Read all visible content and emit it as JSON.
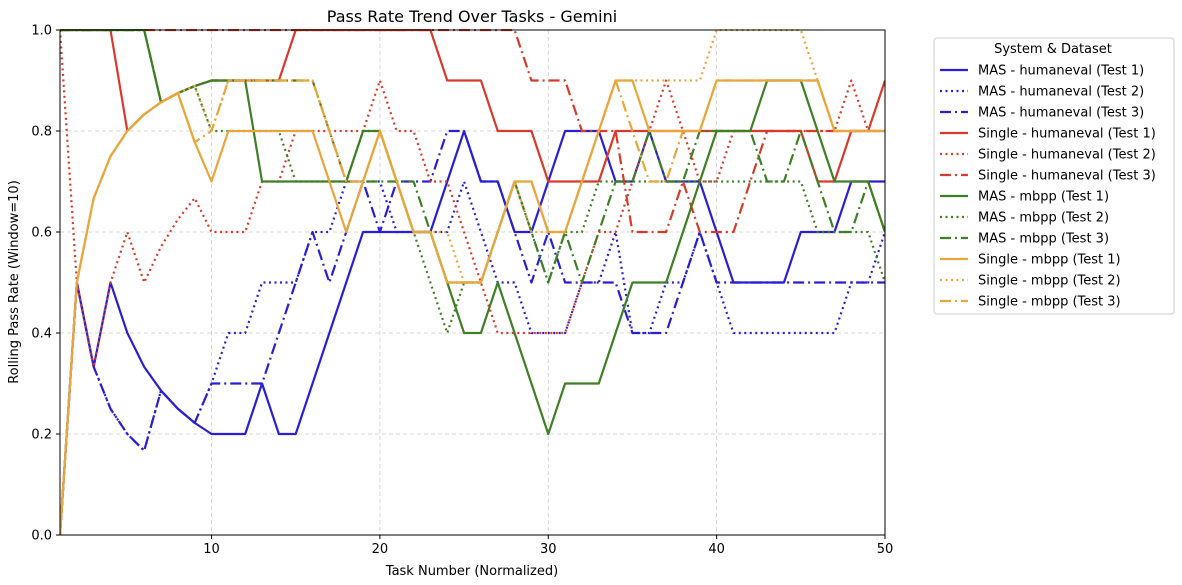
{
  "chart_data": {
    "type": "line",
    "title": "Pass Rate Trend Over Tasks - Gemini",
    "xlabel": "Task Number (Normalized)",
    "ylabel": "Rolling Pass Rate (Window=10)",
    "xlim": [
      1,
      50
    ],
    "ylim": [
      0.0,
      1.0
    ],
    "x_ticks": [
      10,
      20,
      30,
      40,
      50
    ],
    "y_ticks": [
      0.0,
      0.2,
      0.4,
      0.6,
      0.8,
      1.0
    ],
    "x_tick_labels": [
      "10",
      "20",
      "30",
      "40",
      "50"
    ],
    "y_tick_labels": [
      "0.0",
      "0.2",
      "0.4",
      "0.6",
      "0.8",
      "1.0"
    ],
    "grid": true,
    "legend": {
      "title": "System & Dataset",
      "placement": "outside-right"
    },
    "x": [
      1,
      2,
      3,
      4,
      5,
      6,
      7,
      8,
      9,
      10,
      11,
      12,
      13,
      14,
      15,
      16,
      17,
      18,
      19,
      20,
      21,
      22,
      23,
      24,
      25,
      26,
      27,
      28,
      29,
      30,
      31,
      32,
      33,
      34,
      35,
      36,
      37,
      38,
      39,
      40,
      41,
      42,
      43,
      44,
      45,
      46,
      47,
      48,
      49,
      50
    ],
    "series": [
      {
        "name": "MAS - humaneval (Test 1)",
        "color": "#2a1fd6",
        "dash": "solid",
        "values": [
          0,
          0.5,
          0.333,
          0.5,
          0.4,
          0.333,
          0.286,
          0.25,
          0.222,
          0.2,
          0.2,
          0.2,
          0.3,
          0.2,
          0.2,
          0.3,
          0.4,
          0.5,
          0.6,
          0.6,
          0.6,
          0.6,
          0.6,
          0.7,
          0.8,
          0.7,
          0.7,
          0.6,
          0.6,
          0.7,
          0.8,
          0.8,
          0.8,
          0.7,
          0.7,
          0.8,
          0.7,
          0.7,
          0.7,
          0.6,
          0.5,
          0.5,
          0.5,
          0.5,
          0.6,
          0.6,
          0.6,
          0.7,
          0.7,
          0.7
        ]
      },
      {
        "name": "MAS - humaneval (Test 2)",
        "color": "#2a1fd6",
        "dash": "dotted",
        "values": [
          0,
          0.5,
          0.333,
          0.25,
          0.2,
          0.167,
          0.286,
          0.25,
          0.222,
          0.3,
          0.4,
          0.4,
          0.5,
          0.5,
          0.5,
          0.6,
          0.6,
          0.7,
          0.7,
          0.7,
          0.6,
          0.6,
          0.6,
          0.6,
          0.7,
          0.6,
          0.5,
          0.5,
          0.4,
          0.4,
          0.4,
          0.5,
          0.5,
          0.6,
          0.4,
          0.4,
          0.5,
          0.5,
          0.6,
          0.5,
          0.4,
          0.4,
          0.4,
          0.4,
          0.4,
          0.4,
          0.4,
          0.5,
          0.5,
          0.6
        ]
      },
      {
        "name": "MAS - humaneval (Test 3)",
        "color": "#2a1fd6",
        "dash": "dashdot",
        "values": [
          0,
          0.5,
          0.333,
          0.25,
          0.2,
          0.167,
          0.286,
          0.25,
          0.222,
          0.3,
          0.3,
          0.3,
          0.3,
          0.4,
          0.5,
          0.6,
          0.5,
          0.6,
          0.7,
          0.6,
          0.7,
          0.7,
          0.7,
          0.8,
          0.8,
          0.7,
          0.7,
          0.6,
          0.5,
          0.6,
          0.5,
          0.5,
          0.5,
          0.5,
          0.4,
          0.4,
          0.4,
          0.5,
          0.6,
          0.5,
          0.5,
          0.5,
          0.5,
          0.5,
          0.5,
          0.5,
          0.5,
          0.5,
          0.5,
          0.5
        ]
      },
      {
        "name": "Single - humaneval (Test 1)",
        "color": "#d93a2b",
        "dash": "solid",
        "values": [
          1,
          1,
          1,
          1,
          0.8,
          0.833,
          0.857,
          0.875,
          0.889,
          0.9,
          0.9,
          0.9,
          0.9,
          0.9,
          1,
          1,
          1,
          1,
          1,
          1,
          1,
          1,
          1,
          0.9,
          0.9,
          0.9,
          0.8,
          0.8,
          0.8,
          0.7,
          0.7,
          0.7,
          0.7,
          0.8,
          0.8,
          0.8,
          0.8,
          0.8,
          0.8,
          0.8,
          0.8,
          0.8,
          0.8,
          0.8,
          0.8,
          0.7,
          0.7,
          0.8,
          0.8,
          0.9
        ]
      },
      {
        "name": "Single - humaneval (Test 2)",
        "color": "#d93a2b",
        "dash": "dotted",
        "values": [
          1,
          0.5,
          0.333,
          0.5,
          0.6,
          0.5,
          0.571,
          0.625,
          0.667,
          0.6,
          0.6,
          0.6,
          0.7,
          0.7,
          0.8,
          0.8,
          0.8,
          0.8,
          0.8,
          0.9,
          0.8,
          0.8,
          0.7,
          0.7,
          0.6,
          0.5,
          0.4,
          0.4,
          0.4,
          0.4,
          0.4,
          0.5,
          0.6,
          0.6,
          0.7,
          0.8,
          0.9,
          0.8,
          0.7,
          0.7,
          0.8,
          0.8,
          0.8,
          0.8,
          0.8,
          0.8,
          0.8,
          0.9,
          0.8,
          0.8
        ]
      },
      {
        "name": "Single - humaneval (Test 3)",
        "color": "#d93a2b",
        "dash": "dashdot",
        "values": [
          1,
          1,
          1,
          1,
          1,
          1,
          1,
          1,
          1,
          1,
          1,
          1,
          1,
          1,
          1,
          1,
          1,
          1,
          1,
          1,
          1,
          1,
          1,
          1,
          1,
          1,
          1,
          1,
          0.9,
          0.9,
          0.9,
          0.8,
          0.8,
          0.8,
          0.6,
          0.6,
          0.6,
          0.7,
          0.6,
          0.6,
          0.6,
          0.7,
          0.8,
          0.8,
          0.8,
          0.8,
          0.8,
          0.8,
          0.8,
          0.8
        ]
      },
      {
        "name": "MAS - mbpp (Test 1)",
        "color": "#3f7f26",
        "dash": "solid",
        "values": [
          1,
          1,
          1,
          1,
          1,
          1,
          0.857,
          0.875,
          0.889,
          0.9,
          0.9,
          0.9,
          0.7,
          0.7,
          0.7,
          0.7,
          0.7,
          0.7,
          0.8,
          0.8,
          0.7,
          0.6,
          0.6,
          0.5,
          0.4,
          0.4,
          0.5,
          0.4,
          0.3,
          0.2,
          0.3,
          0.3,
          0.3,
          0.4,
          0.5,
          0.5,
          0.5,
          0.6,
          0.7,
          0.8,
          0.8,
          0.8,
          0.9,
          0.9,
          0.9,
          0.8,
          0.7,
          0.7,
          0.7,
          0.6
        ]
      },
      {
        "name": "MAS - mbpp (Test 2)",
        "color": "#3f7f26",
        "dash": "dotted",
        "values": [
          1,
          1,
          1,
          1,
          1,
          1,
          0.857,
          0.875,
          0.889,
          0.8,
          0.8,
          0.8,
          0.8,
          0.8,
          0.7,
          0.7,
          0.7,
          0.7,
          0.8,
          0.8,
          0.7,
          0.6,
          0.5,
          0.4,
          0.5,
          0.5,
          0.6,
          0.7,
          0.6,
          0.5,
          0.6,
          0.6,
          0.7,
          0.7,
          0.7,
          0.7,
          0.7,
          0.7,
          0.7,
          0.7,
          0.7,
          0.7,
          0.7,
          0.7,
          0.7,
          0.6,
          0.6,
          0.6,
          0.6,
          0.5
        ]
      },
      {
        "name": "MAS - mbpp (Test 3)",
        "color": "#3f7f26",
        "dash": "dashdot",
        "values": [
          1,
          1,
          1,
          1,
          1,
          1,
          0.857,
          0.875,
          0.889,
          0.9,
          0.9,
          0.9,
          0.9,
          0.9,
          0.9,
          0.9,
          0.8,
          0.7,
          0.7,
          0.7,
          0.7,
          0.7,
          0.6,
          0.5,
          0.5,
          0.5,
          0.6,
          0.7,
          0.6,
          0.5,
          0.6,
          0.5,
          0.6,
          0.7,
          0.7,
          0.8,
          0.7,
          0.7,
          0.8,
          0.8,
          0.8,
          0.8,
          0.7,
          0.7,
          0.8,
          0.7,
          0.6,
          0.6,
          0.7,
          0.6
        ]
      },
      {
        "name": "Single - mbpp (Test 1)",
        "color": "#eaa63c",
        "dash": "solid",
        "values": [
          0,
          0.5,
          0.667,
          0.75,
          0.8,
          0.833,
          0.857,
          0.875,
          0.778,
          0.7,
          0.8,
          0.8,
          0.8,
          0.8,
          0.8,
          0.8,
          0.7,
          0.6,
          0.7,
          0.8,
          0.7,
          0.6,
          0.6,
          0.5,
          0.5,
          0.5,
          0.6,
          0.7,
          0.7,
          0.6,
          0.6,
          0.7,
          0.8,
          0.9,
          0.9,
          0.8,
          0.8,
          0.8,
          0.8,
          0.9,
          0.9,
          0.9,
          0.9,
          0.9,
          0.9,
          0.9,
          0.8,
          0.8,
          0.8,
          0.8
        ]
      },
      {
        "name": "Single - mbpp (Test 2)",
        "color": "#eaa63c",
        "dash": "dotted",
        "values": [
          0,
          0.5,
          0.667,
          0.75,
          0.8,
          0.833,
          0.857,
          0.875,
          0.889,
          0.8,
          0.9,
          0.9,
          0.9,
          0.9,
          0.9,
          0.9,
          0.8,
          0.7,
          0.7,
          0.8,
          0.7,
          0.6,
          0.6,
          0.6,
          0.5,
          0.5,
          0.6,
          0.7,
          0.6,
          0.6,
          0.6,
          0.7,
          0.8,
          0.9,
          0.9,
          0.9,
          0.9,
          0.9,
          0.9,
          1,
          1,
          1,
          1,
          1,
          1,
          0.9,
          0.8,
          0.8,
          0.8,
          0.8
        ]
      },
      {
        "name": "Single - mbpp (Test 3)",
        "color": "#eaa63c",
        "dash": "dashdot",
        "values": [
          0,
          0.5,
          0.667,
          0.75,
          0.8,
          0.833,
          0.857,
          0.875,
          0.778,
          0.8,
          0.9,
          0.9,
          0.9,
          0.9,
          0.9,
          0.9,
          0.8,
          0.7,
          0.7,
          0.8,
          0.7,
          0.6,
          0.6,
          0.5,
          0.5,
          0.5,
          0.6,
          0.7,
          0.7,
          0.6,
          0.6,
          0.7,
          0.8,
          0.9,
          0.8,
          0.7,
          0.7,
          0.8,
          0.8,
          0.9,
          0.9,
          0.9,
          0.9,
          0.9,
          0.9,
          0.9,
          0.8,
          0.8,
          0.8,
          0.8
        ]
      }
    ]
  }
}
